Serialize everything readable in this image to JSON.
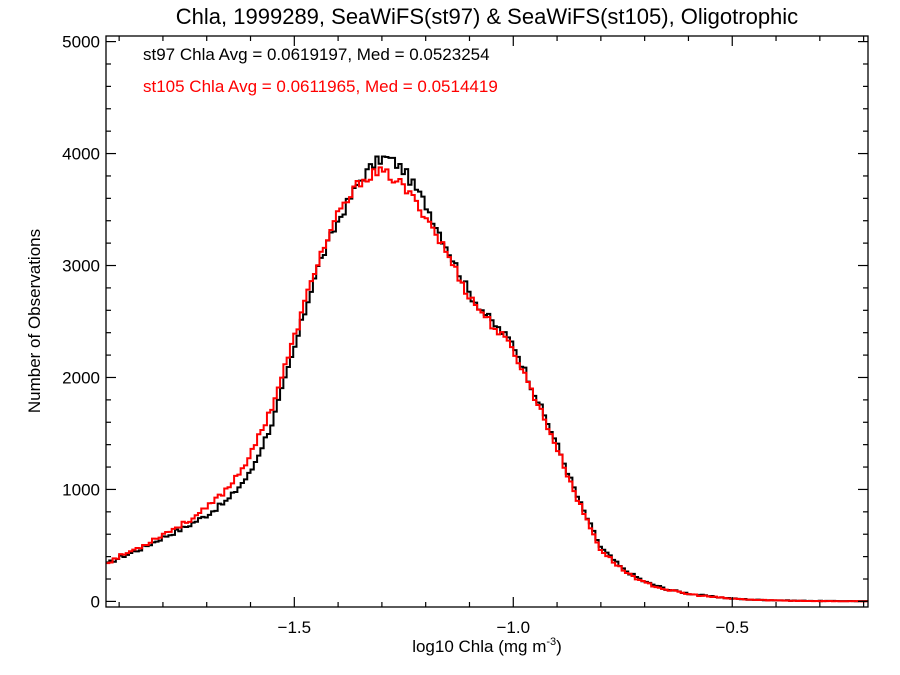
{
  "chart_data": {
    "type": "line",
    "title": "Chla, 1999289, SeaWiFS(st97) & SeaWiFS(st105), Oligotrophic",
    "xlabel": "log10 Chla (mg m",
    "xlabel_sup": "-3",
    "xlabel_suffix": ")",
    "ylabel": "Number of Observations",
    "xlim": [
      -1.93,
      -0.19
    ],
    "ylim": [
      -50,
      5050
    ],
    "x_ticks": [
      {
        "value": -1.5,
        "label": "−1.5"
      },
      {
        "value": -1.0,
        "label": "−1.0"
      },
      {
        "value": -0.5,
        "label": "−0.5"
      }
    ],
    "y_ticks": [
      {
        "value": 0,
        "label": "0"
      },
      {
        "value": 1000,
        "label": "1000"
      },
      {
        "value": 2000,
        "label": "2000"
      },
      {
        "value": 3000,
        "label": "3000"
      },
      {
        "value": 4000,
        "label": "4000"
      },
      {
        "value": 5000,
        "label": "5000"
      }
    ],
    "annotations": [
      {
        "text": "st97 Chla Avg = 0.0619197, Med = 0.0523254",
        "color": "#000000"
      },
      {
        "text": "st105 Chla Avg = 0.0611965, Med = 0.0514419",
        "color": "#ff0000"
      }
    ],
    "series": [
      {
        "color": "#000000",
        "step": true,
        "x": [
          -1.93,
          -1.9,
          -1.85,
          -1.8,
          -1.75,
          -1.7,
          -1.65,
          -1.6,
          -1.55,
          -1.5,
          -1.45,
          -1.4,
          -1.35,
          -1.32,
          -1.3,
          -1.28,
          -1.25,
          -1.2,
          -1.15,
          -1.1,
          -1.05,
          -1.0,
          -0.95,
          -0.9,
          -0.85,
          -0.8,
          -0.75,
          -0.7,
          -0.65,
          -0.6,
          -0.55,
          -0.5,
          -0.45,
          -0.4,
          -0.35,
          -0.3,
          -0.25,
          -0.19
        ],
        "y": [
          330,
          390,
          470,
          570,
          660,
          770,
          910,
          1150,
          1600,
          2250,
          2950,
          3400,
          3760,
          3900,
          3960,
          3950,
          3850,
          3550,
          3150,
          2750,
          2500,
          2300,
          1850,
          1400,
          900,
          480,
          290,
          175,
          110,
          70,
          45,
          25,
          15,
          10,
          6,
          4,
          3,
          2
        ]
      },
      {
        "color": "#ff0000",
        "step": true,
        "x": [
          -1.93,
          -1.9,
          -1.85,
          -1.8,
          -1.75,
          -1.7,
          -1.65,
          -1.6,
          -1.55,
          -1.5,
          -1.45,
          -1.4,
          -1.35,
          -1.32,
          -1.3,
          -1.28,
          -1.25,
          -1.2,
          -1.15,
          -1.1,
          -1.05,
          -1.0,
          -0.95,
          -0.9,
          -0.85,
          -0.8,
          -0.75,
          -0.7,
          -0.65,
          -0.6,
          -0.55,
          -0.5,
          -0.45,
          -0.4,
          -0.35,
          -0.3,
          -0.25,
          -0.19
        ],
        "y": [
          340,
          400,
          490,
          600,
          700,
          830,
          1020,
          1300,
          1750,
          2350,
          3000,
          3450,
          3750,
          3820,
          3830,
          3800,
          3700,
          3450,
          3100,
          2720,
          2480,
          2250,
          1820,
          1370,
          880,
          460,
          280,
          165,
          105,
          65,
          42,
          24,
          14,
          9,
          5,
          3,
          2,
          1
        ]
      }
    ]
  }
}
